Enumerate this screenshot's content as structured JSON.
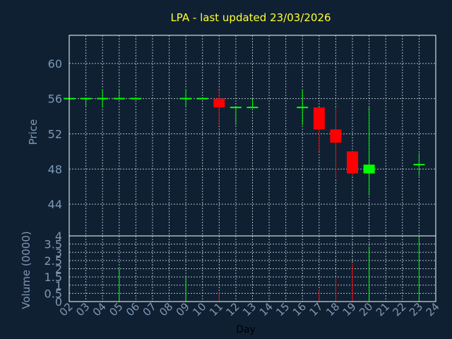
{
  "colors": {
    "background": "#0f2033",
    "frame": "#ffffff",
    "grid": "#c9d3dc",
    "axis_text": "#7f99b3",
    "title": "#ffff33",
    "xlabel": "#000000",
    "up": "#00ff00",
    "down": "#ff0000"
  },
  "chart_data": [
    {
      "type": "candlestick",
      "title": "LPA - last updated 23/03/2026",
      "ylabel": "Price",
      "ylim": [
        40.4,
        63.2
      ],
      "y_ticks": [
        44,
        48,
        52,
        56,
        60
      ],
      "x_ticks": [
        "02",
        "03",
        "04",
        "05",
        "06",
        "07",
        "08",
        "09",
        "10",
        "11",
        "12",
        "13",
        "14",
        "15",
        "16",
        "17",
        "18",
        "19",
        "20",
        "21",
        "22",
        "23",
        "24"
      ],
      "grid": true,
      "candles": [
        {
          "day": "02",
          "open": 56.0,
          "high": 56.0,
          "low": 56.0,
          "close": 56.0
        },
        {
          "day": "03",
          "open": 56.0,
          "high": 56.0,
          "low": 55.0,
          "close": 56.0
        },
        {
          "day": "04",
          "open": 56.0,
          "high": 57.0,
          "low": 55.0,
          "close": 56.0
        },
        {
          "day": "05",
          "open": 56.0,
          "high": 57.0,
          "low": 56.0,
          "close": 56.0
        },
        {
          "day": "06",
          "open": 56.0,
          "high": 56.0,
          "low": 56.0,
          "close": 56.0
        },
        {
          "day": "09",
          "open": 56.0,
          "high": 57.0,
          "low": 55.0,
          "close": 56.0
        },
        {
          "day": "10",
          "open": 56.0,
          "high": 56.0,
          "low": 56.0,
          "close": 56.0
        },
        {
          "day": "11",
          "open": 56.0,
          "high": 57.0,
          "low": 53.0,
          "close": 55.0
        },
        {
          "day": "12",
          "open": 55.0,
          "high": 55.0,
          "low": 53.0,
          "close": 55.0
        },
        {
          "day": "13",
          "open": 55.0,
          "high": 56.0,
          "low": 55.0,
          "close": 55.0
        },
        {
          "day": "16",
          "open": 55.0,
          "high": 57.0,
          "low": 53.0,
          "close": 55.0
        },
        {
          "day": "17",
          "open": 55.0,
          "high": 55.0,
          "low": 50.0,
          "close": 52.5
        },
        {
          "day": "18",
          "open": 52.5,
          "high": 55.0,
          "low": 47.0,
          "close": 51.0
        },
        {
          "day": "19",
          "open": 50.0,
          "high": 50.0,
          "low": 47.2,
          "close": 47.5
        },
        {
          "day": "20",
          "open": 47.5,
          "high": 55.0,
          "low": 45.0,
          "close": 48.5
        },
        {
          "day": "23",
          "open": 48.5,
          "high": 49.8,
          "low": 47.2,
          "close": 48.5
        }
      ]
    },
    {
      "type": "bar",
      "ylabel": "Volume (0000)",
      "xlabel": "Day",
      "ylim": [
        0,
        4
      ],
      "y_ticks": [
        0,
        0.5,
        1,
        1.5,
        2,
        2.5,
        3,
        3.5,
        4
      ],
      "y_tick_labels": [
        "0",
        "0.5",
        "1",
        "1.5",
        "2",
        "2.5",
        "3",
        "3.5",
        "4"
      ],
      "x_ticks": [
        "02",
        "03",
        "04",
        "05",
        "06",
        "07",
        "08",
        "09",
        "10",
        "11",
        "12",
        "13",
        "14",
        "15",
        "16",
        "17",
        "18",
        "19",
        "20",
        "21",
        "22",
        "23",
        "24"
      ],
      "bars": [
        {
          "day": "05",
          "value": 2.0,
          "direction": "up"
        },
        {
          "day": "09",
          "value": 1.5,
          "direction": "up"
        },
        {
          "day": "11",
          "value": 0.6,
          "direction": "down"
        },
        {
          "day": "17",
          "value": 0.75,
          "direction": "down"
        },
        {
          "day": "18",
          "value": 1.5,
          "direction": "down"
        },
        {
          "day": "19",
          "value": 2.3,
          "direction": "down"
        },
        {
          "day": "20",
          "value": 3.35,
          "direction": "up"
        },
        {
          "day": "23",
          "value": 4.0,
          "direction": "up"
        }
      ]
    }
  ]
}
